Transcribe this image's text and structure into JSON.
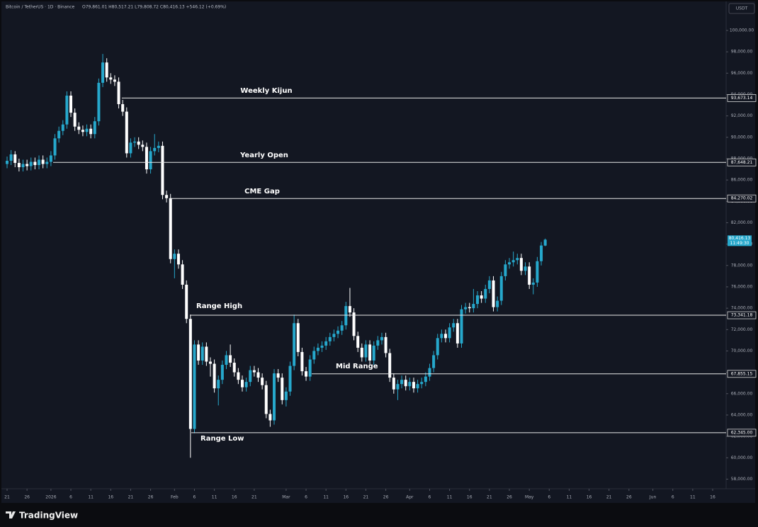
{
  "chart_data": {
    "type": "candlestick",
    "header": {
      "symbol": "Bitcoin / TetherUS · 1D · Binance",
      "ohlc": "O79,861.01 H80,517.21 L79,808.72 C80,416.13 +546.12 (+0.69%)"
    },
    "currency": "USDT",
    "brand": "TradingView",
    "up_color": "#26a8cc",
    "down_color": "#ffffff",
    "categories": [
      "21",
      null,
      null,
      null,
      null,
      "26",
      null,
      null,
      null,
      null,
      null,
      "2026",
      null,
      null,
      null,
      null,
      "6",
      null,
      null,
      null,
      null,
      "11",
      null,
      null,
      null,
      null,
      "16",
      null,
      null,
      null,
      null,
      "21",
      null,
      null,
      null,
      null,
      "26",
      null,
      null,
      null,
      null,
      null,
      "Feb",
      null,
      null,
      null,
      null,
      "6",
      null,
      null,
      null,
      null,
      "11",
      null,
      null,
      null,
      null,
      "16",
      null,
      null,
      null,
      null,
      "21",
      null,
      null,
      null,
      null,
      null,
      null,
      null,
      "Mar",
      null,
      null,
      null,
      null,
      "6",
      null,
      null,
      null,
      null,
      "11",
      null,
      null,
      null,
      null,
      "16",
      null,
      null,
      null,
      null,
      "21",
      null,
      null,
      null,
      null,
      "26",
      null,
      null,
      null,
      null,
      null,
      "Apr",
      null,
      null,
      null,
      null,
      "6",
      null,
      null,
      null,
      null,
      "11",
      null,
      null,
      null,
      null,
      "16",
      null,
      null,
      null,
      null,
      "21",
      null,
      null,
      null,
      null,
      "26",
      null,
      null,
      null,
      null,
      "May",
      null,
      null,
      null,
      null,
      "6",
      null,
      null,
      null,
      null,
      "11",
      null,
      null,
      null,
      null,
      "16",
      null,
      null,
      null,
      null,
      "21",
      null,
      null,
      null,
      null,
      "26",
      null,
      null,
      null,
      null,
      null,
      "Jun",
      null,
      null,
      null,
      null,
      "6",
      null,
      null,
      null,
      null,
      "11",
      null,
      null,
      null,
      null,
      "16"
    ],
    "open": [
      87500,
      87800,
      88400,
      87600,
      87200,
      87500,
      87300,
      87700,
      87400,
      87900,
      87500,
      87700,
      88300,
      89900,
      90600,
      91200,
      93900,
      92300,
      91000,
      90700,
      90500,
      90800,
      90300,
      91500,
      95100,
      97000,
      95600,
      95400,
      95200,
      93100,
      92400,
      88500,
      89500,
      89600,
      89300,
      89100,
      87000,
      88700,
      89000,
      89200,
      84600,
      84300,
      78600,
      79100,
      78100,
      76200,
      73000,
      62700,
      70600,
      69100,
      70400,
      69000,
      68800,
      66500,
      67300,
      68700,
      69600,
      68900,
      68000,
      67300,
      66600,
      67100,
      68200,
      68000,
      67500,
      66800,
      64100,
      63500,
      67900,
      67500,
      65400,
      66200,
      68600,
      72600,
      69900,
      68100,
      67600,
      69200,
      70000,
      70300,
      70500,
      70900,
      71300,
      71600,
      71900,
      72400,
      74200,
      73600,
      71400,
      70300,
      69400,
      70600,
      69100,
      70500,
      71000,
      71300,
      69800,
      67500,
      66400,
      66900,
      67300,
      66700,
      67100,
      66500,
      66900,
      67100,
      67600,
      68400,
      69600,
      71200,
      71600,
      71200,
      72200,
      72600,
      70700,
      73900,
      74100,
      74000,
      74400,
      75200,
      74900,
      75800,
      76600,
      74100,
      74700,
      77000,
      78100,
      78300,
      78500,
      78700,
      77500,
      77900,
      76200,
      76400,
      78400,
      79861.01,
      null,
      null,
      null,
      null,
      null,
      null,
      null,
      null,
      null,
      null,
      null,
      null,
      null,
      null,
      null,
      null,
      null,
      null,
      null,
      null,
      null,
      null,
      null,
      null,
      null,
      null,
      null,
      null,
      null,
      null,
      null,
      null,
      null,
      null,
      null,
      null,
      null,
      null,
      null,
      null,
      null,
      null
    ],
    "high": [
      88200,
      88800,
      88700,
      88000,
      87900,
      87900,
      88100,
      88100,
      88300,
      88300,
      88100,
      88700,
      90300,
      91000,
      91600,
      94300,
      94300,
      92700,
      91400,
      91100,
      91200,
      91200,
      91900,
      95500,
      97800,
      97400,
      96000,
      95800,
      95600,
      93500,
      92800,
      89900,
      90000,
      90000,
      89700,
      89500,
      89100,
      90300,
      89600,
      89600,
      85000,
      84700,
      79500,
      79500,
      78500,
      76600,
      73400,
      71000,
      71000,
      70800,
      70800,
      69400,
      69200,
      67700,
      69100,
      70000,
      70600,
      69300,
      68400,
      67700,
      67500,
      68600,
      68600,
      68400,
      67900,
      67200,
      64500,
      68300,
      68300,
      67900,
      66600,
      69000,
      73400,
      73000,
      70300,
      68500,
      69600,
      70400,
      70700,
      70900,
      71300,
      71700,
      72000,
      72300,
      72800,
      74600,
      75900,
      74000,
      71800,
      70700,
      71000,
      71000,
      70900,
      71400,
      71700,
      71700,
      70200,
      67900,
      67300,
      67700,
      67700,
      67500,
      67500,
      67300,
      67500,
      68000,
      68800,
      70000,
      71600,
      72000,
      72000,
      72600,
      73000,
      73000,
      74300,
      74500,
      74500,
      75800,
      75600,
      75600,
      76200,
      77000,
      77000,
      75100,
      77400,
      78500,
      78700,
      79300,
      79100,
      79100,
      78300,
      78300,
      76800,
      78800,
      80200,
      80517.21,
      null,
      null,
      null,
      null,
      null,
      null,
      null,
      null,
      null,
      null,
      null,
      null,
      null,
      null,
      null,
      null,
      null,
      null,
      null,
      null,
      null,
      null,
      null,
      null,
      null,
      null,
      null,
      null,
      null,
      null,
      null,
      null,
      null,
      null,
      null,
      null,
      null,
      null,
      null,
      null,
      null,
      null
    ],
    "low": [
      87100,
      87400,
      87200,
      86800,
      86800,
      86900,
      86900,
      87000,
      87000,
      87100,
      87100,
      87300,
      87900,
      89500,
      90200,
      90800,
      91900,
      90600,
      90300,
      90100,
      90100,
      89900,
      89900,
      91100,
      94700,
      95200,
      95000,
      94800,
      92700,
      92000,
      88100,
      88100,
      89100,
      88900,
      88700,
      86600,
      86600,
      88300,
      88600,
      84200,
      83900,
      78200,
      76800,
      77700,
      75800,
      72600,
      60000,
      62300,
      68700,
      68700,
      68600,
      67600,
      66100,
      64900,
      66900,
      68300,
      68500,
      67600,
      66900,
      66200,
      66200,
      66700,
      67600,
      67100,
      66400,
      63700,
      62900,
      63100,
      67100,
      65000,
      64800,
      65800,
      68200,
      69500,
      67700,
      67200,
      67200,
      68800,
      69600,
      69900,
      70100,
      70500,
      70900,
      71200,
      71500,
      72000,
      73200,
      71000,
      69900,
      69000,
      69000,
      68700,
      68700,
      70100,
      70600,
      69400,
      67100,
      66000,
      65400,
      66500,
      66300,
      66300,
      66100,
      66100,
      66500,
      66700,
      67200,
      68000,
      69200,
      70800,
      70800,
      70800,
      71800,
      70300,
      70300,
      73500,
      73600,
      73600,
      74000,
      74500,
      74500,
      75400,
      73700,
      73700,
      74300,
      76600,
      77700,
      77900,
      78100,
      77100,
      77100,
      75800,
      75300,
      76000,
      78000,
      79808.72,
      null,
      null,
      null,
      null,
      null,
      null,
      null,
      null,
      null,
      null,
      null,
      null,
      null,
      null,
      null,
      null,
      null,
      null,
      null,
      null,
      null,
      null,
      null,
      null,
      null,
      null,
      null,
      null,
      null,
      null,
      null,
      null,
      null,
      null,
      null,
      null,
      null,
      null,
      null,
      null,
      null,
      null
    ],
    "close": [
      87800,
      88400,
      87600,
      87200,
      87500,
      87300,
      87700,
      87400,
      87900,
      87500,
      87700,
      88300,
      89900,
      90600,
      91200,
      93900,
      92300,
      91000,
      90700,
      90500,
      90800,
      90300,
      91500,
      95100,
      97000,
      95600,
      95400,
      95200,
      93100,
      92400,
      88500,
      89500,
      89600,
      89300,
      89100,
      87000,
      88700,
      89000,
      89200,
      84600,
      84300,
      78600,
      79100,
      78100,
      76200,
      73000,
      62700,
      70600,
      69100,
      70400,
      69000,
      68800,
      66500,
      67300,
      68700,
      69600,
      68900,
      68000,
      67300,
      66600,
      67100,
      68200,
      68000,
      67500,
      66800,
      64100,
      63500,
      67900,
      67500,
      65400,
      66200,
      68600,
      72600,
      69900,
      68100,
      67600,
      69200,
      70000,
      70300,
      70500,
      70900,
      71300,
      71600,
      71900,
      72400,
      74200,
      73600,
      71400,
      70300,
      69400,
      70600,
      69100,
      70500,
      71000,
      71300,
      69800,
      67500,
      66400,
      66900,
      67300,
      66700,
      67100,
      66500,
      66900,
      67100,
      67600,
      68400,
      69600,
      71200,
      71600,
      71200,
      72200,
      72600,
      70700,
      73900,
      74100,
      74000,
      74400,
      75200,
      74900,
      75800,
      76600,
      74100,
      74700,
      77000,
      78100,
      78300,
      78500,
      78700,
      77500,
      77900,
      76200,
      76400,
      78400,
      79870,
      80416.13,
      null,
      null,
      null,
      null,
      null,
      null,
      null,
      null,
      null,
      null,
      null,
      null,
      null,
      null,
      null,
      null,
      null,
      null,
      null,
      null,
      null,
      null,
      null,
      null,
      null,
      null,
      null,
      null,
      null,
      null,
      null,
      null,
      null,
      null,
      null,
      null,
      null,
      null,
      null,
      null,
      null,
      null
    ],
    "ylim": [
      57100,
      102850
    ],
    "yticks": [
      {
        "value": 58000,
        "label": "58,000.00"
      },
      {
        "value": 60000,
        "label": "60,000.00"
      },
      {
        "value": 62000,
        "label": "62,000.00"
      },
      {
        "value": 64000,
        "label": "64,000.00"
      },
      {
        "value": 66000,
        "label": "66,000.00"
      },
      {
        "value": 68000,
        "label": "68,000.00"
      },
      {
        "value": 70000,
        "label": "70,000.00"
      },
      {
        "value": 72000,
        "label": "72,000.00"
      },
      {
        "value": 74000,
        "label": "74,000.00"
      },
      {
        "value": 76000,
        "label": "76,000.00"
      },
      {
        "value": 78000,
        "label": "78,000.00"
      },
      {
        "value": 80000,
        "label": "80,000.00"
      },
      {
        "value": 82000,
        "label": "82,000.00"
      },
      {
        "value": 84000,
        "label": "84,000.00"
      },
      {
        "value": 86000,
        "label": "86,000.00"
      },
      {
        "value": 88000,
        "label": "88,000.00"
      },
      {
        "value": 90000,
        "label": "90,000.00"
      },
      {
        "value": 92000,
        "label": "92,000.00"
      },
      {
        "value": 94000,
        "label": "94,000.00"
      },
      {
        "value": 96000,
        "label": "96,000.00"
      },
      {
        "value": 98000,
        "label": "98,000.00"
      },
      {
        "value": 100000,
        "label": "100,000.00"
      }
    ],
    "levels": [
      {
        "name": "Weekly Kijun",
        "value": 93673.14,
        "label": "93,673.14"
      },
      {
        "name": "Yearly Open",
        "value": 87648.21,
        "label": "87,648.21"
      },
      {
        "name": "CME Gap",
        "value": 84270.02,
        "label": "84,270.02"
      },
      {
        "name": "Range High",
        "value": 73341.18,
        "label": "73,341.18"
      },
      {
        "name": "Mid Range",
        "value": 67855.15,
        "label": "67,855.15"
      },
      {
        "name": "Range Low",
        "value": 62345.0,
        "label": "62,345.00"
      }
    ],
    "current_price": {
      "value": 80416.13,
      "label": "80,416.13",
      "countdown": "11:49:30"
    }
  }
}
